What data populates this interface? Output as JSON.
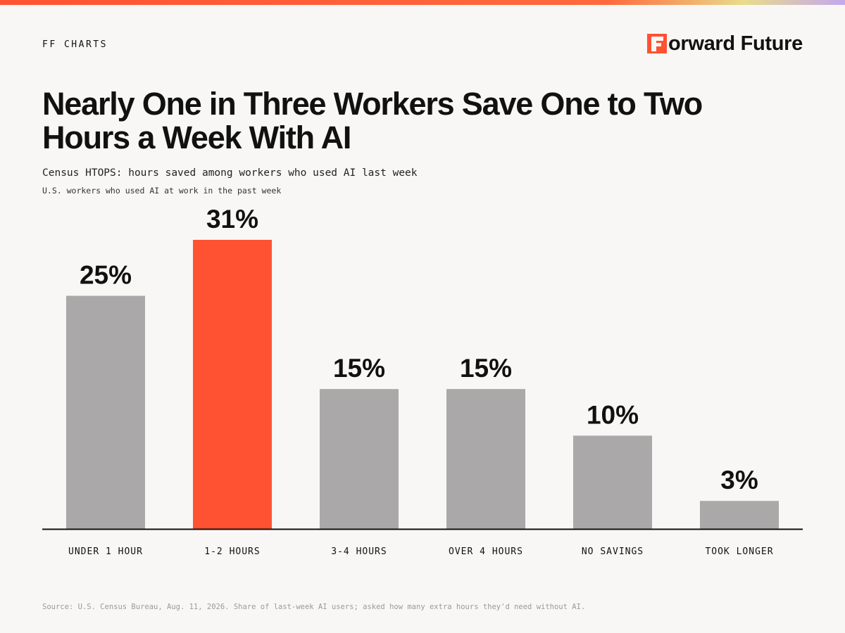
{
  "header": {
    "kicker": "FF CHARTS",
    "brand_name": "orward Future",
    "brand_logo_letter": "F",
    "brand_logo_icon": "forward-future-logo-icon"
  },
  "title": "Nearly One in Three Workers Save One to Two Hours a Week With AI",
  "subtitle": "Census HTOPS: hours saved among workers who used AI last week",
  "note": "U.S. workers who used AI at work in the past week",
  "source": "Source: U.S. Census Bureau, Aug. 11, 2026. Share of last-week AI users; asked how many extra hours they'd need without AI.",
  "colors": {
    "accent": "#ff5233",
    "bar_default": "#aaa8a8",
    "text": "#111111",
    "background": "#f8f7f5",
    "baseline": "#111111",
    "top_bar_gradient": [
      "#ff5233",
      "#ff6a3d",
      "#e9dc8a",
      "#c3a8f0"
    ]
  },
  "chart_data": {
    "type": "bar",
    "categories": [
      "UNDER 1 HOUR",
      "1-2 HOURS",
      "3-4 HOURS",
      "OVER 4 HOURS",
      "NO SAVINGS",
      "TOOK LONGER"
    ],
    "values": [
      25,
      31,
      15,
      15,
      10,
      3
    ],
    "value_labels": [
      "25%",
      "31%",
      "15%",
      "15%",
      "10%",
      "3%"
    ],
    "highlight": "1-2 HOURS",
    "ylim": [
      0,
      31
    ],
    "unit": "%",
    "grid": false,
    "legend": "none",
    "xlabel": "",
    "ylabel": ""
  }
}
